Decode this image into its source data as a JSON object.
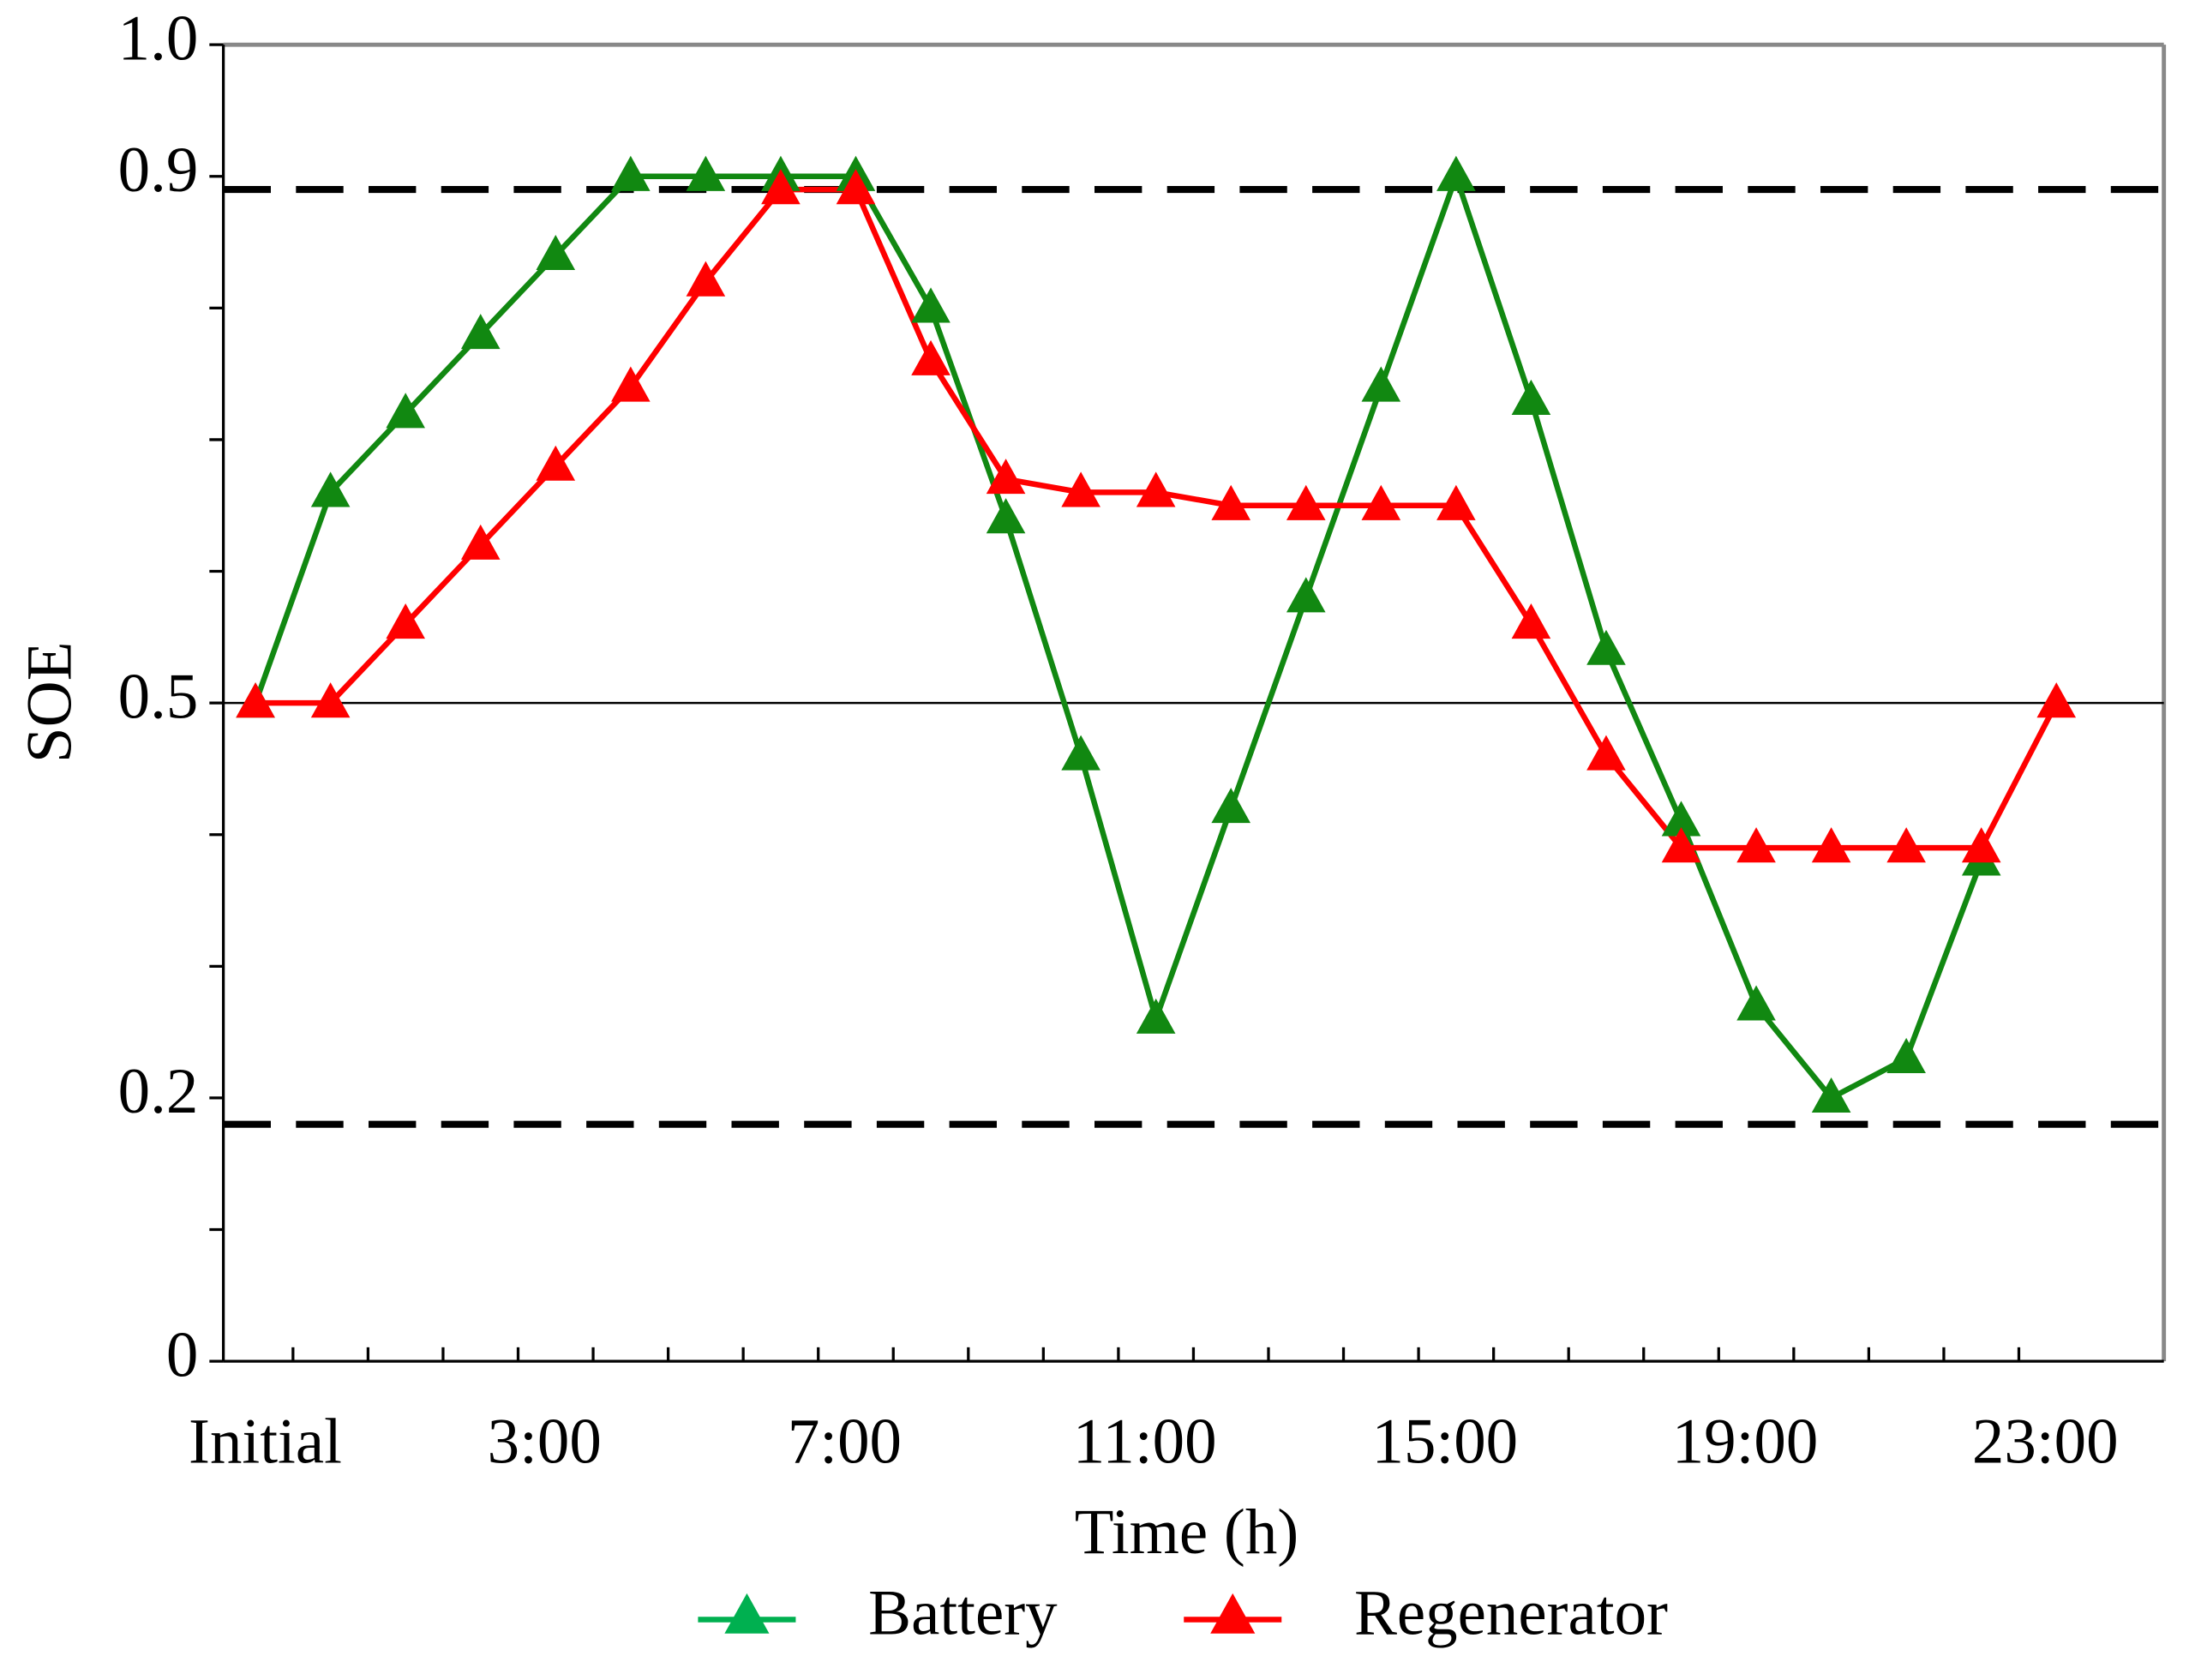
{
  "chart_data": {
    "type": "line",
    "x_label": "Time (h)",
    "y_label": "SOE",
    "categories": [
      "Initial",
      null,
      null,
      null,
      "3:00",
      null,
      null,
      null,
      "7:00",
      null,
      null,
      null,
      "11:00",
      null,
      null,
      null,
      "15:00",
      null,
      null,
      null,
      "19:00",
      null,
      null,
      null,
      "23:00"
    ],
    "series": [
      {
        "name": "Battery",
        "color": "#118811",
        "legend_marker_color": "#00b050",
        "values": [
          0.5,
          0.66,
          0.72,
          0.78,
          0.84,
          0.9,
          0.9,
          0.9,
          0.9,
          0.8,
          0.64,
          0.46,
          0.26,
          0.42,
          0.58,
          0.74,
          0.9,
          0.73,
          0.54,
          0.41,
          0.27,
          0.2,
          0.23,
          0.38,
          null
        ]
      },
      {
        "name": "Regenerator",
        "color": "#ff0000",
        "legend_marker_color": "#ff0000",
        "values": [
          0.5,
          0.5,
          0.56,
          0.62,
          0.68,
          0.74,
          0.82,
          0.89,
          0.89,
          0.76,
          0.67,
          0.66,
          0.66,
          0.65,
          0.65,
          0.65,
          0.65,
          0.56,
          0.46,
          0.39,
          0.39,
          0.39,
          0.39,
          0.39,
          0.5
        ]
      }
    ],
    "ylim": [
      0,
      1
    ],
    "yticks": [
      0,
      0.2,
      0.5,
      0.9,
      {
        "value": 1,
        "label": "1.0"
      }
    ],
    "yminorticks": [
      0.1,
      0.3,
      0.4,
      0.6,
      0.7,
      0.8
    ],
    "reference_lines": [
      {
        "value": 0.89,
        "style": "dashed"
      },
      {
        "value": 0.18,
        "style": "dashed"
      },
      {
        "value": 0.5,
        "style": "solid"
      }
    ],
    "legend": "bottom"
  }
}
